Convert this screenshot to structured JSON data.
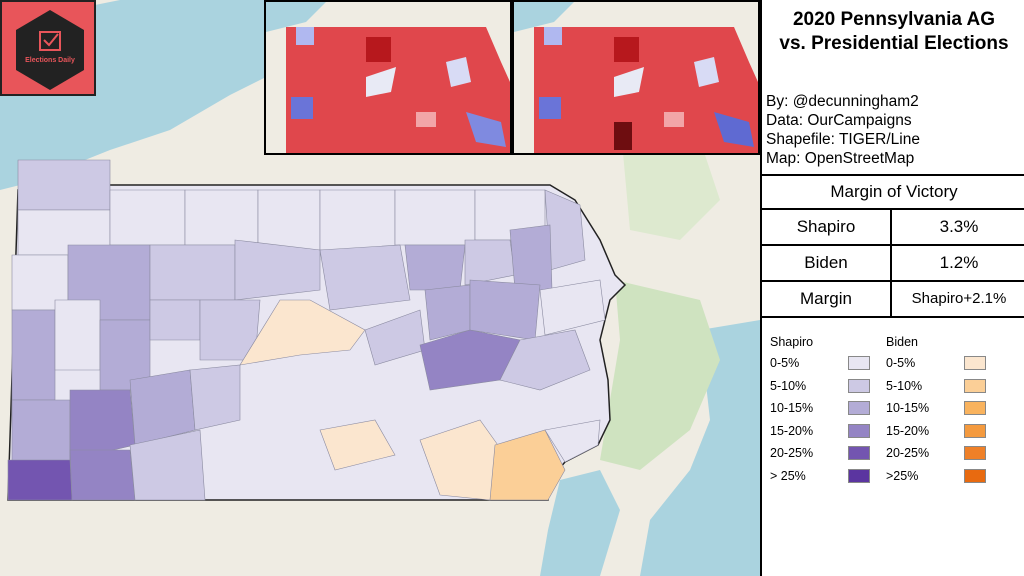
{
  "title_line1": "2020 Pennsylvania AG",
  "title_line2": "vs. Presidential Elections",
  "credits": {
    "by": "By: @decunningham2",
    "data": "Data: OurCampaigns",
    "shapefile": "Shapefile: TIGER/Line",
    "map": "Map: OpenStreetMap"
  },
  "logo": {
    "text": "Elections Daily",
    "color": "#e8555a"
  },
  "margin_of_victory": {
    "header": "Margin of Victory",
    "rows": [
      {
        "label": "Shapiro",
        "value": "3.3%"
      },
      {
        "label": "Biden",
        "value": "1.2%"
      },
      {
        "label": "Margin",
        "value": "Shapiro+2.1%"
      }
    ]
  },
  "legend": {
    "shapiro": {
      "title": "Shapiro",
      "items": [
        {
          "label": "0-5%",
          "color": "#e8e6f2"
        },
        {
          "label": "5-10%",
          "color": "#cdc9e4"
        },
        {
          "label": "10-15%",
          "color": "#b3acd6"
        },
        {
          "label": "15-20%",
          "color": "#9484c4"
        },
        {
          "label": "20-25%",
          "color": "#7355b0"
        },
        {
          "label": "> 25%",
          "color": "#5b35a0"
        }
      ]
    },
    "biden": {
      "title": "Biden",
      "items": [
        {
          "label": "0-5%",
          "color": "#fbe6cf"
        },
        {
          "label": "5-10%",
          "color": "#fbcf97"
        },
        {
          "label": "10-15%",
          "color": "#f9b35e"
        },
        {
          "label": "15-20%",
          "color": "#f49a3e"
        },
        {
          "label": "20-25%",
          "color": "#ef8028"
        },
        {
          "label": ">25%",
          "color": "#e86a10"
        }
      ]
    }
  },
  "map_colors": {
    "water": "#aad3df",
    "land": "#efece3",
    "forest": "#cfe3c0",
    "inset_red": "#e0474c",
    "inset_dark_red": "#b7181d",
    "inset_blue": "#7f8ae0"
  }
}
